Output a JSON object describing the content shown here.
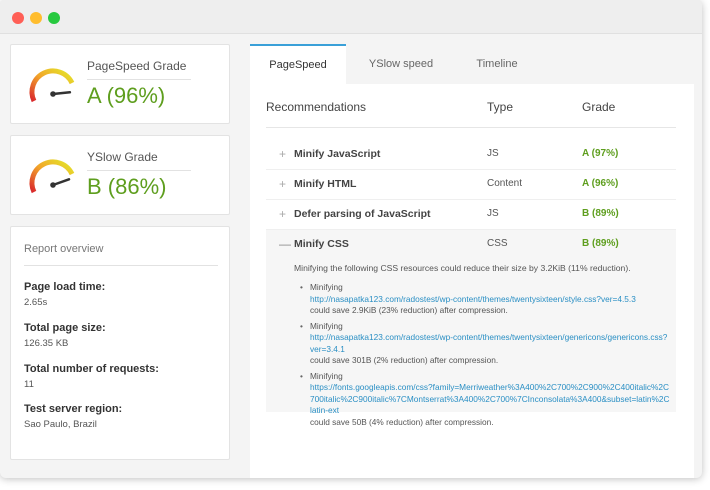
{
  "sidebar": {
    "pagespeed": {
      "label": "PageSpeed Grade",
      "value": "A (96%)",
      "level": 0.96
    },
    "yslow": {
      "label": "YSlow Grade",
      "value": "B (86%)",
      "level": 0.86
    },
    "overview": {
      "title": "Report overview",
      "items": [
        {
          "label": "Page load time:",
          "value": "2.65s"
        },
        {
          "label": "Total page size:",
          "value": "126.35 KB"
        },
        {
          "label": "Total number of requests:",
          "value": "11"
        },
        {
          "label": "Test server region:",
          "value": "Sao Paulo, Brazil"
        }
      ]
    }
  },
  "tabs": [
    {
      "label": "PageSpeed",
      "active": true
    },
    {
      "label": "YSlow speed",
      "active": false
    },
    {
      "label": "Timeline",
      "active": false
    }
  ],
  "table": {
    "headers": {
      "recommendation": "Recommendations",
      "type": "Type",
      "grade": "Grade"
    },
    "rows": [
      {
        "toggle": "+",
        "name": "Minify JavaScript",
        "type": "JS",
        "grade": "A (97%)"
      },
      {
        "toggle": "+",
        "name": "Minify HTML",
        "type": "Content",
        "grade": "A (96%)"
      },
      {
        "toggle": "+",
        "name": "Defer parsing of JavaScript",
        "type": "JS",
        "grade": "B (89%)"
      },
      {
        "toggle": "—",
        "name": "Minify CSS",
        "type": "CSS",
        "grade": "B (89%)"
      }
    ],
    "details": {
      "summary": "Minifying the following CSS resources could reduce their size by 3.2KiB (11% reduction).",
      "resources": [
        {
          "prefix": "Minifying",
          "url": "http://nasapatka123.com/radostest/wp-content/themes/twentysixteen/style.css?ver=4.5.3",
          "note": "could save 2.9KiB (23% reduction) after compression."
        },
        {
          "prefix": "Minifying",
          "url": "http://nasapatka123.com/radostest/wp-content/themes/twentysixteen/genericons/genericons.css?ver=3.4.1",
          "note": "could save 301B (2% reduction) after compression."
        },
        {
          "prefix": "Minifying",
          "url": "https://fonts.googleapis.com/css?family=Merriweather%3A400%2C700%2C900%2C400italic%2C700italic%2C900italic%7CMontserrat%3A400%2C700%7CInconsolata%3A400&subset=latin%2Clatin-ext",
          "note": "could save 50B (4% reduction) after compression."
        }
      ]
    }
  },
  "colors": {
    "grade_green": "#5e9e1e",
    "tab_accent": "#3aa0d8",
    "link": "#2a8fc4"
  }
}
